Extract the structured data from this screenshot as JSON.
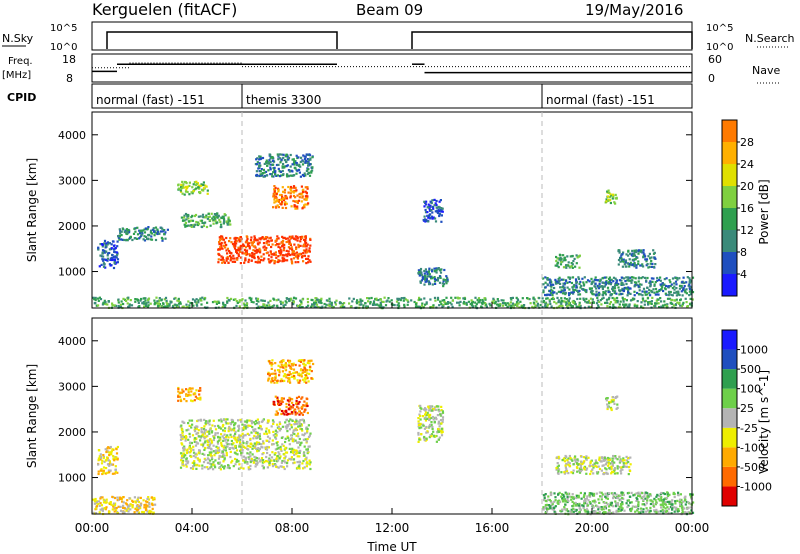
{
  "header": {
    "station": "Kerguelen (fitACF)",
    "beam": "Beam 09",
    "date": "19/May/2016"
  },
  "strip_labels": {
    "nsky": "N.Sky",
    "nsearch": "N.Search",
    "freq_top": "Freq.",
    "freq_unit": "[MHz]",
    "nave": "Nave",
    "cpid": "CPID",
    "nsky_tick_hi": "10^5",
    "nsky_tick_lo": "10^0",
    "nsearch_tick_hi": "10^5",
    "nsearch_tick_lo": "10^0",
    "freq_tick_hi": "18",
    "freq_tick_lo": "8",
    "nave_tick_hi": "60",
    "nave_tick_lo": "0"
  },
  "cpid_modes": [
    {
      "label": "normal (fast) -151",
      "start_hour": 0
    },
    {
      "label": "themis 3300",
      "start_hour": 6
    },
    {
      "label": "normal (fast) -151",
      "start_hour": 18
    }
  ],
  "colors": {
    "power": [
      "#1a1aff",
      "#1f4fbf",
      "#3a8a7a",
      "#2f9f4f",
      "#7fd040",
      "#e0e000",
      "#ffb000",
      "#ff7a00",
      "#ff3000"
    ],
    "velocity": [
      "#e00000",
      "#ff6a00",
      "#ffaa00",
      "#eeee00",
      "#b4b4b4",
      "#6ed04a",
      "#2f9f4f",
      "#1f4fbf",
      "#1a1aff"
    ]
  },
  "chart_data": [
    {
      "type": "heatmap",
      "name": "power-panel",
      "ylabel": "Slant Range [km]",
      "ylim": [
        200,
        4500
      ],
      "xlim": [
        0,
        24
      ],
      "y_ticks": [
        "1000",
        "2000",
        "3000",
        "4000"
      ],
      "colorbar_label": "Power [dB]",
      "colorbar_ticks": [
        "4",
        "8",
        "12",
        "16",
        "20",
        "24",
        "28"
      ],
      "blobs": [
        {
          "t0": 0.2,
          "t1": 1.0,
          "r0": 1100,
          "r1": 1700,
          "lvl": 1
        },
        {
          "t0": 0.0,
          "t1": 24.0,
          "r0": 220,
          "r1": 450,
          "lvl": 3
        },
        {
          "t0": 1.0,
          "t1": 3.0,
          "r0": 1700,
          "r1": 2000,
          "lvl": 2
        },
        {
          "t0": 3.5,
          "t1": 5.5,
          "r0": 2000,
          "r1": 2300,
          "lvl": 3
        },
        {
          "t0": 5.0,
          "t1": 8.7,
          "r0": 1200,
          "r1": 1800,
          "lvl": 8
        },
        {
          "t0": 3.4,
          "t1": 4.6,
          "r0": 2700,
          "r1": 3000,
          "lvl": 4
        },
        {
          "t0": 7.2,
          "t1": 8.6,
          "r0": 2400,
          "r1": 2900,
          "lvl": 7
        },
        {
          "t0": 6.5,
          "t1": 8.8,
          "r0": 3100,
          "r1": 3600,
          "lvl": 2
        },
        {
          "t0": 13.2,
          "t1": 14.0,
          "r0": 2100,
          "r1": 2600,
          "lvl": 1
        },
        {
          "t0": 13.0,
          "t1": 14.2,
          "r0": 700,
          "r1": 1100,
          "lvl": 2
        },
        {
          "t0": 18.5,
          "t1": 19.5,
          "r0": 1100,
          "r1": 1400,
          "lvl": 3
        },
        {
          "t0": 21.0,
          "t1": 22.5,
          "r0": 1100,
          "r1": 1500,
          "lvl": 2
        },
        {
          "t0": 20.5,
          "t1": 21.0,
          "r0": 2500,
          "r1": 2800,
          "lvl": 4
        },
        {
          "t0": 18.0,
          "t1": 24.0,
          "r0": 500,
          "r1": 900,
          "lvl": 2
        }
      ]
    },
    {
      "type": "heatmap",
      "name": "velocity-panel",
      "ylabel": "Slant Range [km]",
      "xlabel": "Time UT",
      "ylim": [
        200,
        4500
      ],
      "xlim": [
        0,
        24
      ],
      "y_ticks": [
        "1000",
        "2000",
        "3000",
        "4000"
      ],
      "x_ticks": [
        "00:00",
        "04:00",
        "08:00",
        "12:00",
        "16:00",
        "20:00",
        "00:00"
      ],
      "colorbar_label": "Velocity [m s^-1]",
      "colorbar_ticks": [
        "-1000",
        "-500",
        "-100",
        "-25",
        "25",
        "100",
        "500",
        "1000"
      ],
      "blobs": [
        {
          "t0": 3.5,
          "t1": 8.7,
          "r0": 1200,
          "r1": 2300,
          "lvl": 4
        },
        {
          "t0": 0.0,
          "t1": 2.5,
          "r0": 220,
          "r1": 600,
          "lvl": 3
        },
        {
          "t0": 0.2,
          "t1": 1.0,
          "r0": 1100,
          "r1": 1700,
          "lvl": 3
        },
        {
          "t0": 3.4,
          "t1": 4.3,
          "r0": 2700,
          "r1": 3000,
          "lvl": 2
        },
        {
          "t0": 7.2,
          "t1": 8.6,
          "r0": 2400,
          "r1": 2800,
          "lvl": 1
        },
        {
          "t0": 7.0,
          "t1": 8.8,
          "r0": 3100,
          "r1": 3600,
          "lvl": 2
        },
        {
          "t0": 13.0,
          "t1": 14.0,
          "r0": 1800,
          "r1": 2600,
          "lvl": 4
        },
        {
          "t0": 18.0,
          "t1": 24.0,
          "r0": 220,
          "r1": 700,
          "lvl": 5
        },
        {
          "t0": 18.5,
          "t1": 21.5,
          "r0": 1100,
          "r1": 1500,
          "lvl": 4
        },
        {
          "t0": 20.5,
          "t1": 21.0,
          "r0": 2500,
          "r1": 2800,
          "lvl": 4
        }
      ]
    },
    {
      "type": "line",
      "name": "nsky-strip",
      "note_series": "N.Sky",
      "segments": [
        [
          0.6,
          9.8
        ],
        [
          12.8,
          24.0
        ]
      ],
      "level": 1.0
    },
    {
      "type": "line",
      "name": "freq-strip",
      "segments": [
        [
          0.0,
          1.0,
          0.4
        ],
        [
          1.0,
          9.8,
          0.7
        ],
        [
          12.8,
          13.3,
          0.7
        ],
        [
          13.3,
          24.0,
          0.35
        ]
      ],
      "nave_segments": [
        [
          0.0,
          1.5,
          0.55
        ],
        [
          1.5,
          6.0,
          0.75
        ],
        [
          6.0,
          24.0,
          0.6
        ]
      ]
    }
  ]
}
